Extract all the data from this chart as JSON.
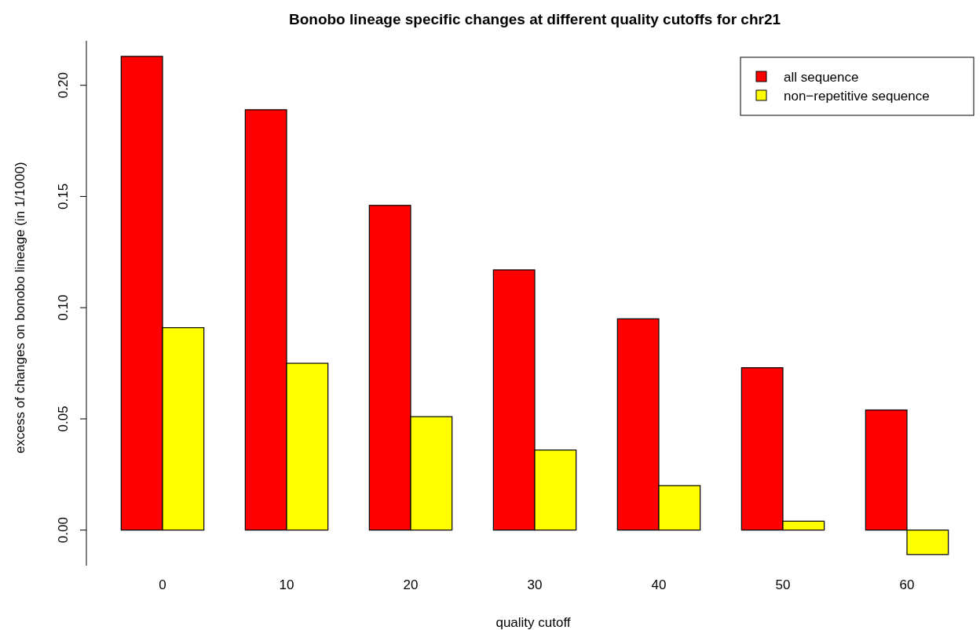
{
  "chart_data": {
    "type": "bar",
    "title": "Bonobo lineage specific changes at different quality cutoffs for chr21",
    "xlabel": "quality cutoff",
    "ylabel": "excess of changes on bonobo lineage (in 1/1000)",
    "categories": [
      "0",
      "10",
      "20",
      "30",
      "40",
      "50",
      "60"
    ],
    "series": [
      {
        "name": "all sequence",
        "color": "#ff0000",
        "values": [
          0.213,
          0.189,
          0.146,
          0.117,
          0.095,
          0.073,
          0.054
        ]
      },
      {
        "name": "non−repetitive sequence",
        "color": "#ffff00",
        "values": [
          0.091,
          0.075,
          0.051,
          0.036,
          0.02,
          0.004,
          -0.011
        ]
      }
    ],
    "ylim": [
      -0.016,
      0.22
    ],
    "yticks": [
      {
        "value": 0,
        "label": "0.00"
      },
      {
        "value": 0.05,
        "label": "0.05"
      },
      {
        "value": 0.1,
        "label": "0.10"
      },
      {
        "value": 0.15,
        "label": "0.15"
      },
      {
        "value": 0.2,
        "label": "0.20"
      }
    ],
    "legend": "top right",
    "grid": false
  }
}
